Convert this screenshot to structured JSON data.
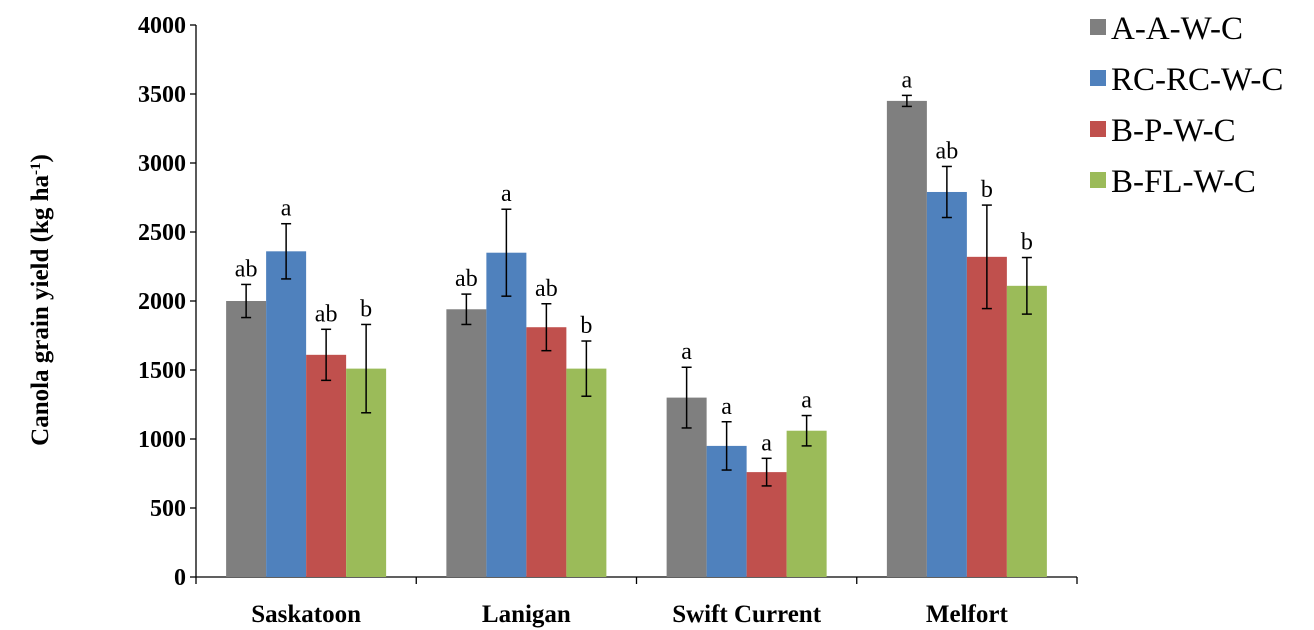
{
  "chart_data": {
    "type": "bar",
    "ylabel": "Canola grain yield (kg ha",
    "ylabel_sup": "-1",
    "ylabel_close": ")",
    "ylim": [
      0,
      4000
    ],
    "yticks": [
      "0",
      "500",
      "1000",
      "1500",
      "2000",
      "2500",
      "3000",
      "3500",
      "4000"
    ],
    "categories": [
      "Saskatoon",
      "Lanigan",
      "Swift Current",
      "Melfort"
    ],
    "legend_position": "top-right",
    "series": [
      {
        "name": "A-A-W-C",
        "color": "#7f7f7f",
        "values": [
          2000,
          1940,
          1300,
          3450
        ],
        "errors": [
          120,
          110,
          220,
          40
        ],
        "letters": [
          "ab",
          "ab",
          "a",
          "a"
        ]
      },
      {
        "name": "RC-RC-W-C",
        "color": "#4f81bd",
        "values": [
          2360,
          2350,
          950,
          2790
        ],
        "errors": [
          200,
          315,
          175,
          185
        ],
        "letters": [
          "a",
          "a",
          "a",
          "ab"
        ]
      },
      {
        "name": "B-P-W-C",
        "color": "#c0504d",
        "values": [
          1610,
          1810,
          760,
          2320
        ],
        "errors": [
          185,
          170,
          100,
          375
        ],
        "letters": [
          "ab",
          "ab",
          "a",
          "b"
        ]
      },
      {
        "name": "B-FL-W-C",
        "color": "#9bbb59",
        "values": [
          1510,
          1510,
          1060,
          2110
        ],
        "errors": [
          320,
          200,
          110,
          205
        ],
        "letters": [
          "b",
          "b",
          "a",
          "b"
        ]
      }
    ]
  }
}
